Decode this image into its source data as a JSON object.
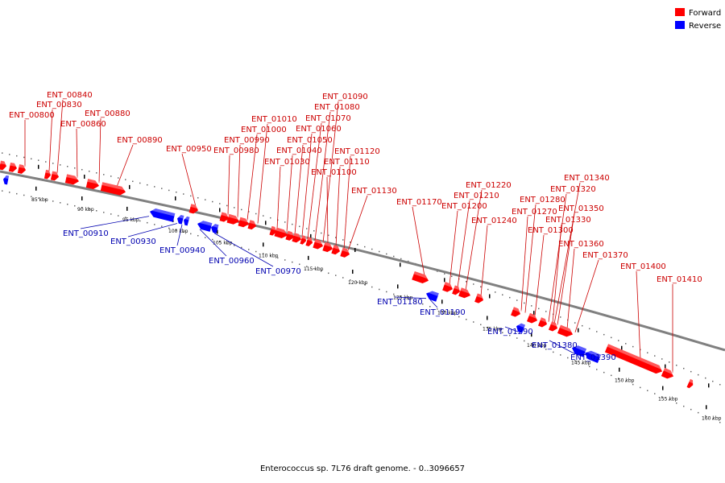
{
  "caption": "Enterococcus sp. 7L76 draft genome. - 0..3096657",
  "legend": [
    {
      "label": "Forward",
      "color": "#ff0000"
    },
    {
      "label": "Reverse",
      "color": "#0000ff"
    }
  ],
  "colors": {
    "forward": "#ff0000",
    "reverse": "#0000ff",
    "backbone": "#808080",
    "label_fwd": "#cc0000",
    "label_rev": "#0000b0"
  },
  "ticks": [
    "85 kbp",
    "90 kbp",
    "95 kbp",
    "100 kbp",
    "105 kbp",
    "110 kbp",
    "115 kbp",
    "120 kbp",
    "125 kbp",
    "130 kbp",
    "135 kbp",
    "140 kbp",
    "145 kbp",
    "150 kbp",
    "155 kbp",
    "160 kbp"
  ],
  "forward_genes": [
    "ENT_00800",
    "ENT_00830",
    "ENT_00840",
    "ENT_00860",
    "ENT_00880",
    "ENT_00890",
    "ENT_00950",
    "ENT_00980",
    "ENT_00990",
    "ENT_01000",
    "ENT_01010",
    "ENT_01030",
    "ENT_01040",
    "ENT_01050",
    "ENT_01060",
    "ENT_01070",
    "ENT_01080",
    "ENT_01090",
    "ENT_01100",
    "ENT_01110",
    "ENT_01120",
    "ENT_01130",
    "ENT_01170",
    "ENT_01200",
    "ENT_01210",
    "ENT_01220",
    "ENT_01240",
    "ENT_01270",
    "ENT_01280",
    "ENT_01300",
    "ENT_01320",
    "ENT_01330",
    "ENT_01340",
    "ENT_01350",
    "ENT_01360",
    "ENT_01370",
    "ENT_01400",
    "ENT_01410"
  ],
  "reverse_genes": [
    "ENT_00910",
    "ENT_00930",
    "ENT_00940",
    "ENT_00960",
    "ENT_00970",
    "ENT_01180",
    "ENT_01190",
    "ENT_01290",
    "ENT_01380",
    "ENT_01390"
  ]
}
